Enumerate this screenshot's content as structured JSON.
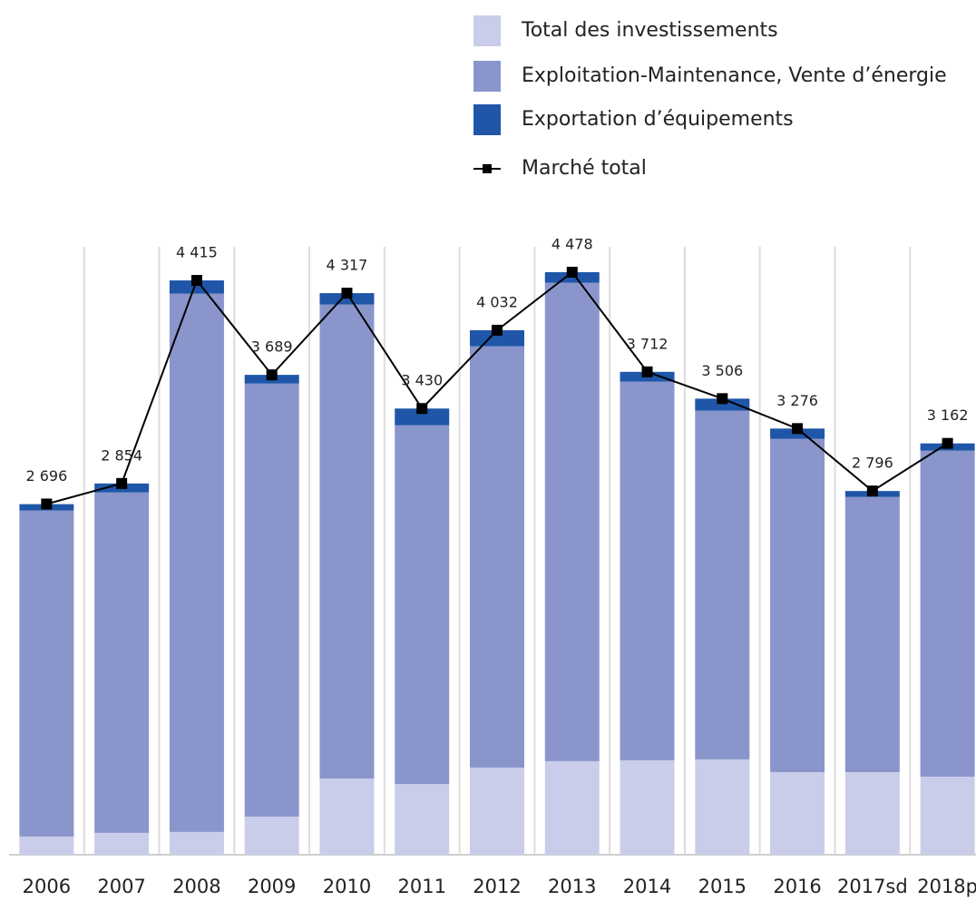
{
  "chart_data": {
    "type": "bar",
    "categories": [
      "2006",
      "2007",
      "2008",
      "2009",
      "2010",
      "2011",
      "2012",
      "2013",
      "2014",
      "2015",
      "2016",
      "2017sd",
      "2018p"
    ],
    "series": [
      {
        "name": "Total des investissements",
        "color": "#c9cde9",
        "values": [
          140,
          168,
          175,
          293,
          586,
          544,
          670,
          719,
          726,
          733,
          635,
          635,
          600
        ]
      },
      {
        "name": "Exploitation-Maintenance, Vente d’énergie",
        "color": "#8a95cc",
        "values": [
          2506,
          2617,
          4139,
          3329,
          3644,
          2757,
          3239,
          3678,
          2911,
          2680,
          2562,
          2115,
          2506
        ]
      },
      {
        "name": "Exportation d’équipements",
        "color": "#1f56a8",
        "values": [
          49,
          69,
          101,
          67,
          87,
          129,
          123,
          81,
          75,
          93,
          79,
          46,
          56
        ]
      },
      {
        "name": "Marché total",
        "color": "#000000",
        "type": "line",
        "values": [
          2696,
          2854,
          4415,
          3689,
          4317,
          3430,
          4032,
          4478,
          3712,
          3506,
          3276,
          2796,
          3162
        ],
        "value_labels": [
          "2 696",
          "2 854",
          "4 415",
          "3 689",
          "4 317",
          "3 430",
          "4 032",
          "4 478",
          "3 712",
          "3 506",
          "3 276",
          "2 796",
          "3 162"
        ]
      }
    ]
  }
}
